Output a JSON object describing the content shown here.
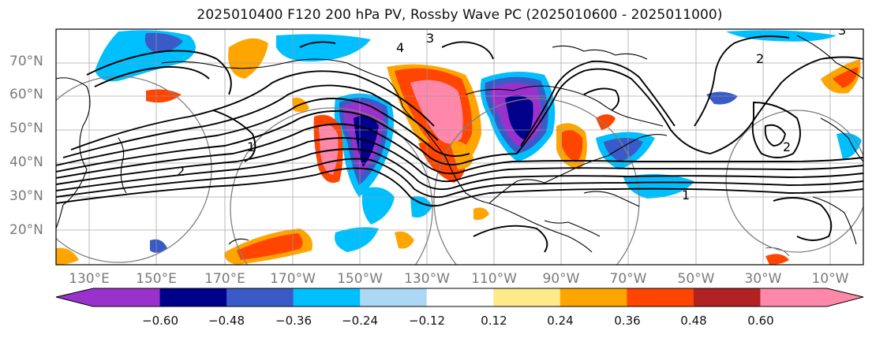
{
  "title": "2025010400 F120 200 hPa PV, Rossby Wave PC (2025010600 - 2025011000)",
  "latitude_labels": [
    "70°N",
    "60°N",
    "50°N",
    "40°N",
    "30°N",
    "20°N"
  ],
  "longitude_labels": [
    "130°E",
    "150°E",
    "170°E",
    "170°W",
    "150°W",
    "130°W",
    "110°W",
    "90°W",
    "70°W",
    "50°W",
    "30°W",
    "10°W"
  ],
  "colorbar": {
    "colors": [
      "#9932cc",
      "#00008b",
      "#3a5bc7",
      "#00bfff",
      "#add8f5",
      "#ffffff",
      "#ffe98a",
      "#ffa500",
      "#ff4500",
      "#b22222",
      "#ff88aa"
    ],
    "tick_labels": [
      "−0.60",
      "−0.48",
      "−0.36",
      "−0.24",
      "−0.12",
      "0.12",
      "0.24",
      "0.36",
      "0.48",
      "0.60"
    ]
  },
  "contour_labels": [
    "4",
    "3",
    "2",
    "1",
    "2",
    "1",
    "2",
    "3"
  ],
  "colors": {
    "land_outline": "#000000",
    "contour": "#000000",
    "grid": "#9a9a9a",
    "circles": "#808080"
  }
}
